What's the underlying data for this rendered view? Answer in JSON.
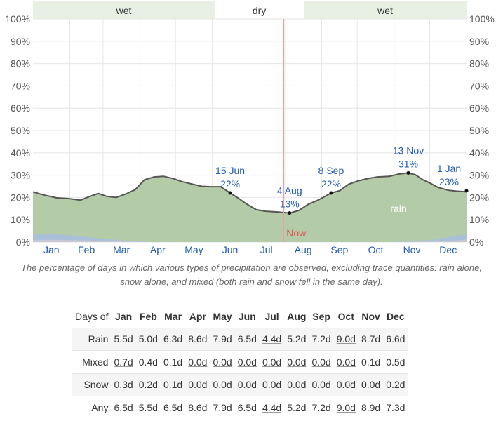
{
  "chart_data": {
    "type": "area",
    "caption": "The percentage of days in which various types of precipitation are observed, excluding trace quantities: rain alone, snow alone, and mixed (both rain and snow fell in the same day).",
    "months": [
      "Jan",
      "Feb",
      "Mar",
      "Apr",
      "May",
      "Jun",
      "Jul",
      "Aug",
      "Sep",
      "Oct",
      "Nov",
      "Dec"
    ],
    "y_ticks": [
      "0%",
      "10%",
      "20%",
      "30%",
      "40%",
      "50%",
      "60%",
      "70%",
      "80%",
      "90%",
      "100%"
    ],
    "ylim": [
      0,
      100
    ],
    "seasons": [
      {
        "label": "wet",
        "start_day": 0,
        "end_day": 153,
        "color": "#e8efe3"
      },
      {
        "label": "dry",
        "start_day": 153,
        "end_day": 228,
        "color": "#ffffff"
      },
      {
        "label": "wet",
        "start_day": 228,
        "end_day": 365,
        "color": "#e8efe3"
      }
    ],
    "series": [
      {
        "name": "rain",
        "color": "#b4cba8",
        "line_color": "#555555",
        "points": [
          [
            0,
            22.5
          ],
          [
            10,
            21
          ],
          [
            20,
            19.8
          ],
          [
            30,
            19.5
          ],
          [
            40,
            18.8
          ],
          [
            48,
            20.5
          ],
          [
            55,
            21.8
          ],
          [
            62,
            20.5
          ],
          [
            70,
            20
          ],
          [
            78,
            21.5
          ],
          [
            86,
            23.5
          ],
          [
            94,
            28
          ],
          [
            102,
            29.2
          ],
          [
            110,
            29.5
          ],
          [
            118,
            28.5
          ],
          [
            126,
            27
          ],
          [
            134,
            26
          ],
          [
            142,
            25
          ],
          [
            150,
            24.8
          ],
          [
            158,
            24.8
          ],
          [
            166,
            22
          ],
          [
            172,
            20
          ],
          [
            180,
            17
          ],
          [
            188,
            14.5
          ],
          [
            196,
            13.8
          ],
          [
            206,
            13.5
          ],
          [
            216,
            13
          ],
          [
            224,
            14.2
          ],
          [
            232,
            17
          ],
          [
            240,
            18.8
          ],
          [
            251,
            22
          ],
          [
            258,
            23
          ],
          [
            266,
            26
          ],
          [
            274,
            27.5
          ],
          [
            282,
            28.5
          ],
          [
            290,
            29.2
          ],
          [
            300,
            29.5
          ],
          [
            308,
            30.5
          ],
          [
            316,
            31
          ],
          [
            322,
            30.2
          ],
          [
            328,
            28
          ],
          [
            334,
            26.5
          ],
          [
            341,
            24.5
          ],
          [
            350,
            23.2
          ],
          [
            357,
            22.8
          ],
          [
            365,
            22.5
          ]
        ]
      },
      {
        "name": "mixed",
        "color": "#aac0d8",
        "points": [
          [
            0,
            3.5
          ],
          [
            20,
            3.5
          ],
          [
            40,
            2.6
          ],
          [
            60,
            1.5
          ],
          [
            80,
            0.5
          ],
          [
            100,
            0
          ],
          [
            300,
            0
          ],
          [
            320,
            0.3
          ],
          [
            335,
            1
          ],
          [
            350,
            2.2
          ],
          [
            365,
            3.5
          ]
        ]
      },
      {
        "name": "snow",
        "color": "#c8c8d2",
        "points": [
          [
            0,
            1.0
          ],
          [
            20,
            1.0
          ],
          [
            40,
            0.8
          ],
          [
            60,
            0.5
          ],
          [
            80,
            0.2
          ],
          [
            100,
            0
          ],
          [
            300,
            0
          ],
          [
            320,
            0.1
          ],
          [
            335,
            0.3
          ],
          [
            350,
            0.6
          ],
          [
            365,
            1.0
          ]
        ]
      }
    ],
    "area_label": "rain",
    "annotations": [
      {
        "day": 166,
        "value": 22,
        "date": "15 Jun",
        "pct": "22%"
      },
      {
        "day": 216,
        "value": 13,
        "date": "4 Aug",
        "pct": "13%"
      },
      {
        "day": 251,
        "value": 22,
        "date": "8 Sep",
        "pct": "22%"
      },
      {
        "day": 316,
        "value": 31,
        "date": "13 Nov",
        "pct": "31%"
      },
      {
        "day": 365,
        "value": 23,
        "date": "1 Jan",
        "pct": "23%"
      }
    ],
    "now": {
      "day": 211,
      "label": "Now",
      "color": "#e05050"
    },
    "table": {
      "header": "Days of",
      "months": [
        "Jan",
        "Feb",
        "Mar",
        "Apr",
        "May",
        "Jun",
        "Jul",
        "Aug",
        "Sep",
        "Oct",
        "Nov",
        "Dec"
      ],
      "rows": [
        {
          "label": "Rain",
          "values": [
            "5.5d",
            "5.0d",
            "6.3d",
            "8.6d",
            "7.9d",
            "6.5d",
            "4.4d",
            "5.2d",
            "7.2d",
            "9.0d",
            "8.7d",
            "6.6d"
          ]
        },
        {
          "label": "Mixed",
          "values": [
            "0.7d",
            "0.4d",
            "0.1d",
            "0.0d",
            "0.0d",
            "0.0d",
            "0.0d",
            "0.0d",
            "0.0d",
            "0.0d",
            "0.1d",
            "0.5d"
          ]
        },
        {
          "label": "Snow",
          "values": [
            "0.3d",
            "0.2d",
            "0.1d",
            "0.0d",
            "0.0d",
            "0.0d",
            "0.0d",
            "0.0d",
            "0.0d",
            "0.0d",
            "0.0d",
            "0.2d"
          ]
        },
        {
          "label": "Any",
          "values": [
            "6.5d",
            "5.5d",
            "6.5d",
            "8.6d",
            "7.9d",
            "6.5d",
            "4.4d",
            "5.2d",
            "7.2d",
            "9.0d",
            "8.9d",
            "7.3d"
          ]
        }
      ],
      "underlined": {
        "Rain": [
          6,
          9
        ],
        "Mixed": [
          0,
          3,
          4,
          5,
          6,
          7,
          8,
          9
        ],
        "Snow": [
          0,
          3,
          4,
          5,
          6,
          7,
          8,
          9,
          10
        ],
        "Any": [
          6,
          9
        ]
      }
    }
  }
}
